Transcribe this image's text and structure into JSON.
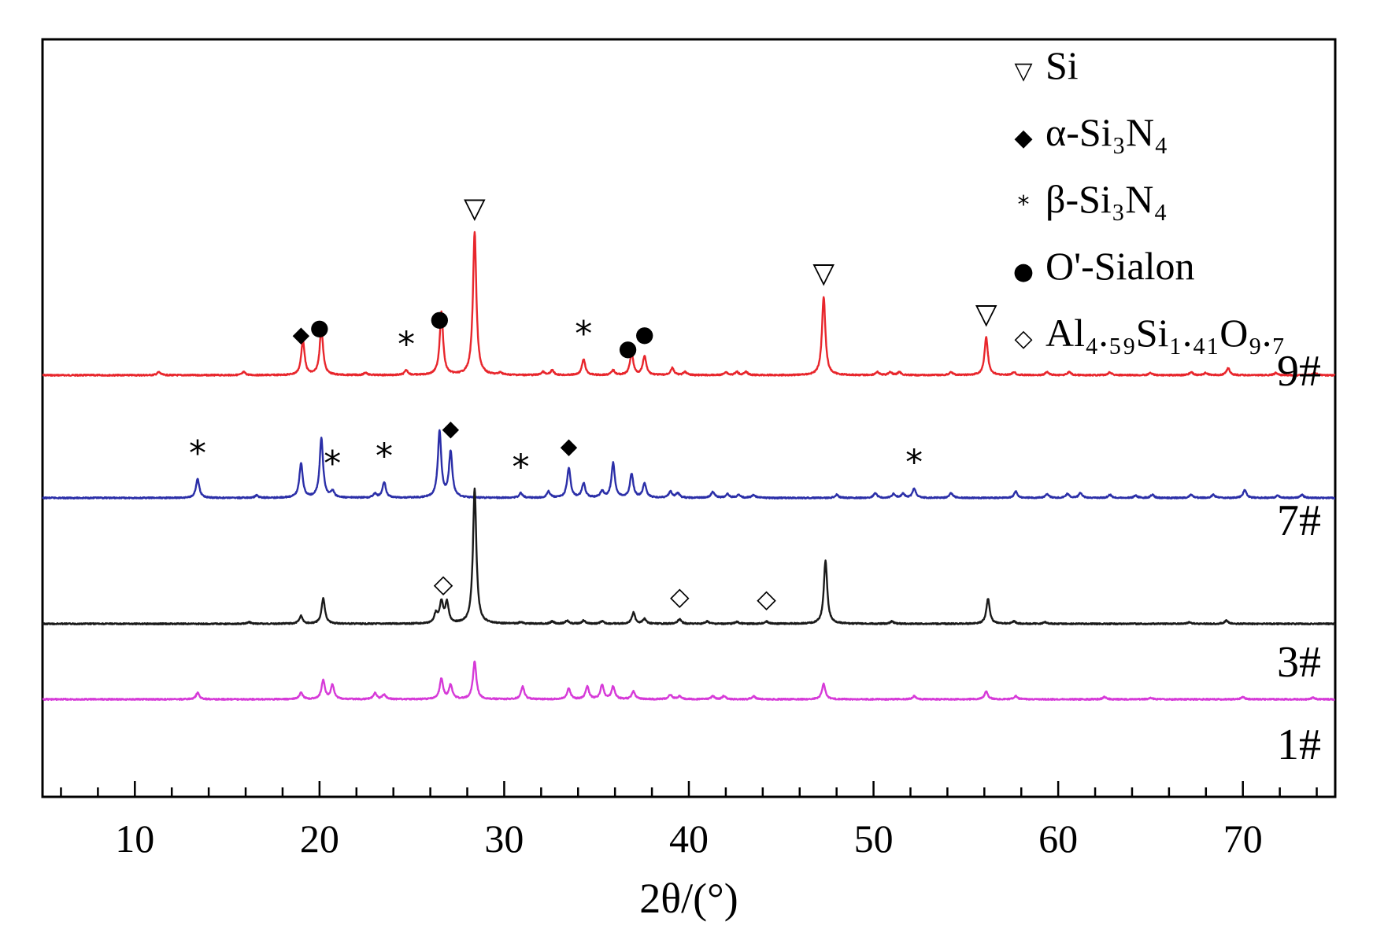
{
  "chart_data": {
    "type": "line",
    "xlabel": "2θ/(°)",
    "xlim": [
      5,
      75
    ],
    "x_ticks": [
      10,
      20,
      30,
      40,
      50,
      60,
      70
    ],
    "grid": false,
    "legend_position": "top-right",
    "legend": [
      {
        "symbol": "▽",
        "label": "Si",
        "sub": []
      },
      {
        "symbol": "◆",
        "label": "α-Si₃N₄",
        "sub": []
      },
      {
        "symbol": "*",
        "label": "β-Si₃N₄",
        "sub": []
      },
      {
        "symbol": "●",
        "label": "O'-Sialon",
        "sub": []
      },
      {
        "symbol": "◇",
        "label": "Al₄.₅₉Si₁.₄₁O₉.₇",
        "sub": []
      }
    ],
    "series": [
      {
        "name": "9#",
        "color": "#e8262c",
        "baseline": 0.2,
        "noise": 0.004,
        "peaks": [
          [
            11.3,
            0.02
          ],
          [
            15.9,
            0.02
          ],
          [
            19.1,
            0.22
          ],
          [
            20.1,
            0.3
          ],
          [
            22.5,
            0.015
          ],
          [
            24.7,
            0.03
          ],
          [
            26.6,
            0.4
          ],
          [
            28.4,
            0.91
          ],
          [
            29.8,
            0.015
          ],
          [
            32.1,
            0.02
          ],
          [
            32.6,
            0.03
          ],
          [
            34.3,
            0.1
          ],
          [
            35.9,
            0.03
          ],
          [
            36.9,
            0.14
          ],
          [
            37.6,
            0.12
          ],
          [
            39.1,
            0.045
          ],
          [
            39.8,
            0.02
          ],
          [
            42.0,
            0.02
          ],
          [
            42.6,
            0.02
          ],
          [
            43.1,
            0.02
          ],
          [
            47.3,
            0.5
          ],
          [
            50.2,
            0.02
          ],
          [
            50.9,
            0.02
          ],
          [
            51.4,
            0.02
          ],
          [
            54.2,
            0.02
          ],
          [
            56.1,
            0.24
          ],
          [
            57.6,
            0.02
          ],
          [
            59.4,
            0.02
          ],
          [
            60.6,
            0.02
          ],
          [
            62.8,
            0.02
          ],
          [
            65.0,
            0.015
          ],
          [
            67.2,
            0.02
          ],
          [
            68.0,
            0.015
          ],
          [
            69.2,
            0.045
          ],
          [
            71.8,
            0.015
          ],
          [
            73.9,
            0.015
          ]
        ]
      },
      {
        "name": "7#",
        "color": "#2b2fa8",
        "baseline": 0.98,
        "noise": 0.004,
        "peaks": [
          [
            13.4,
            0.12
          ],
          [
            16.6,
            0.015
          ],
          [
            19.0,
            0.22
          ],
          [
            20.1,
            0.38
          ],
          [
            20.7,
            0.04
          ],
          [
            23.0,
            0.025
          ],
          [
            23.5,
            0.1
          ],
          [
            26.5,
            0.42
          ],
          [
            27.1,
            0.29
          ],
          [
            30.9,
            0.03
          ],
          [
            32.4,
            0.04
          ],
          [
            33.5,
            0.19
          ],
          [
            34.3,
            0.09
          ],
          [
            35.3,
            0.04
          ],
          [
            35.9,
            0.22
          ],
          [
            36.9,
            0.15
          ],
          [
            37.6,
            0.09
          ],
          [
            39.0,
            0.04
          ],
          [
            39.4,
            0.03
          ],
          [
            41.3,
            0.04
          ],
          [
            42.1,
            0.025
          ],
          [
            42.7,
            0.02
          ],
          [
            43.5,
            0.02
          ],
          [
            48.0,
            0.02
          ],
          [
            50.1,
            0.03
          ],
          [
            51.1,
            0.025
          ],
          [
            51.6,
            0.025
          ],
          [
            52.2,
            0.06
          ],
          [
            54.2,
            0.03
          ],
          [
            57.7,
            0.04
          ],
          [
            59.4,
            0.025
          ],
          [
            60.5,
            0.025
          ],
          [
            61.2,
            0.03
          ],
          [
            62.8,
            0.02
          ],
          [
            64.2,
            0.015
          ],
          [
            65.1,
            0.02
          ],
          [
            67.2,
            0.02
          ],
          [
            68.4,
            0.02
          ],
          [
            70.1,
            0.05
          ],
          [
            71.9,
            0.015
          ],
          [
            73.2,
            0.02
          ]
        ]
      },
      {
        "name": "3#",
        "color": "#1a1a1a",
        "baseline": 1.78,
        "noise": 0.004,
        "peaks": [
          [
            16.2,
            0.01
          ],
          [
            19.0,
            0.05
          ],
          [
            20.2,
            0.16
          ],
          [
            26.3,
            0.06
          ],
          [
            26.6,
            0.13
          ],
          [
            26.9,
            0.13
          ],
          [
            28.4,
            0.86
          ],
          [
            30.9,
            0.01
          ],
          [
            32.6,
            0.015
          ],
          [
            33.4,
            0.02
          ],
          [
            34.3,
            0.02
          ],
          [
            35.3,
            0.015
          ],
          [
            37.0,
            0.07
          ],
          [
            37.6,
            0.03
          ],
          [
            39.5,
            0.03
          ],
          [
            41.0,
            0.015
          ],
          [
            42.6,
            0.012
          ],
          [
            44.2,
            0.015
          ],
          [
            47.4,
            0.4
          ],
          [
            51.0,
            0.015
          ],
          [
            56.2,
            0.16
          ],
          [
            57.6,
            0.015
          ],
          [
            59.3,
            0.01
          ],
          [
            67.1,
            0.01
          ],
          [
            69.1,
            0.02
          ]
        ]
      },
      {
        "name": "1#",
        "color": "#d63ad8",
        "baseline": 2.26,
        "noise": 0.004,
        "peaks": [
          [
            13.4,
            0.04
          ],
          [
            19.0,
            0.04
          ],
          [
            20.2,
            0.12
          ],
          [
            20.7,
            0.09
          ],
          [
            23.0,
            0.04
          ],
          [
            23.5,
            0.03
          ],
          [
            26.6,
            0.13
          ],
          [
            27.1,
            0.09
          ],
          [
            28.4,
            0.24
          ],
          [
            31.0,
            0.08
          ],
          [
            33.5,
            0.07
          ],
          [
            34.5,
            0.08
          ],
          [
            35.3,
            0.09
          ],
          [
            35.9,
            0.08
          ],
          [
            37.0,
            0.05
          ],
          [
            39.0,
            0.03
          ],
          [
            39.5,
            0.02
          ],
          [
            41.3,
            0.02
          ],
          [
            41.9,
            0.02
          ],
          [
            43.5,
            0.02
          ],
          [
            47.3,
            0.1
          ],
          [
            52.2,
            0.02
          ],
          [
            56.1,
            0.05
          ],
          [
            57.7,
            0.02
          ],
          [
            62.5,
            0.015
          ],
          [
            65.0,
            0.01
          ],
          [
            70.0,
            0.015
          ],
          [
            73.8,
            0.01
          ]
        ]
      }
    ],
    "annotations": [
      {
        "symbol": "▽",
        "x": 28.4,
        "level": 0
      },
      {
        "symbol": "◆",
        "x": 19.0,
        "level": 0
      },
      {
        "symbol": "●",
        "x": 20.0,
        "level": 0
      },
      {
        "symbol": "*",
        "x": 24.7,
        "level": 0
      },
      {
        "symbol": "●",
        "x": 26.5,
        "level": 0
      },
      {
        "symbol": "*",
        "x": 34.3,
        "level": 0
      },
      {
        "symbol": "●",
        "x": 36.7,
        "level": 0
      },
      {
        "symbol": "●",
        "x": 37.6,
        "level": 0
      },
      {
        "symbol": "▽",
        "x": 47.3,
        "level": 0
      },
      {
        "symbol": "▽",
        "x": 56.1,
        "level": 0
      },
      {
        "symbol": "*",
        "x": 13.4,
        "level": 1
      },
      {
        "symbol": "*",
        "x": 20.7,
        "level": 1
      },
      {
        "symbol": "*",
        "x": 23.5,
        "level": 1
      },
      {
        "symbol": "◆",
        "x": 27.1,
        "level": 1
      },
      {
        "symbol": "*",
        "x": 30.9,
        "level": 1
      },
      {
        "symbol": "◆",
        "x": 33.5,
        "level": 1
      },
      {
        "symbol": "*",
        "x": 52.2,
        "level": 1
      },
      {
        "symbol": "◇",
        "x": 26.7,
        "level": 2
      },
      {
        "symbol": "◇",
        "x": 39.5,
        "level": 2
      },
      {
        "symbol": "◇",
        "x": 44.2,
        "level": 2
      }
    ]
  }
}
